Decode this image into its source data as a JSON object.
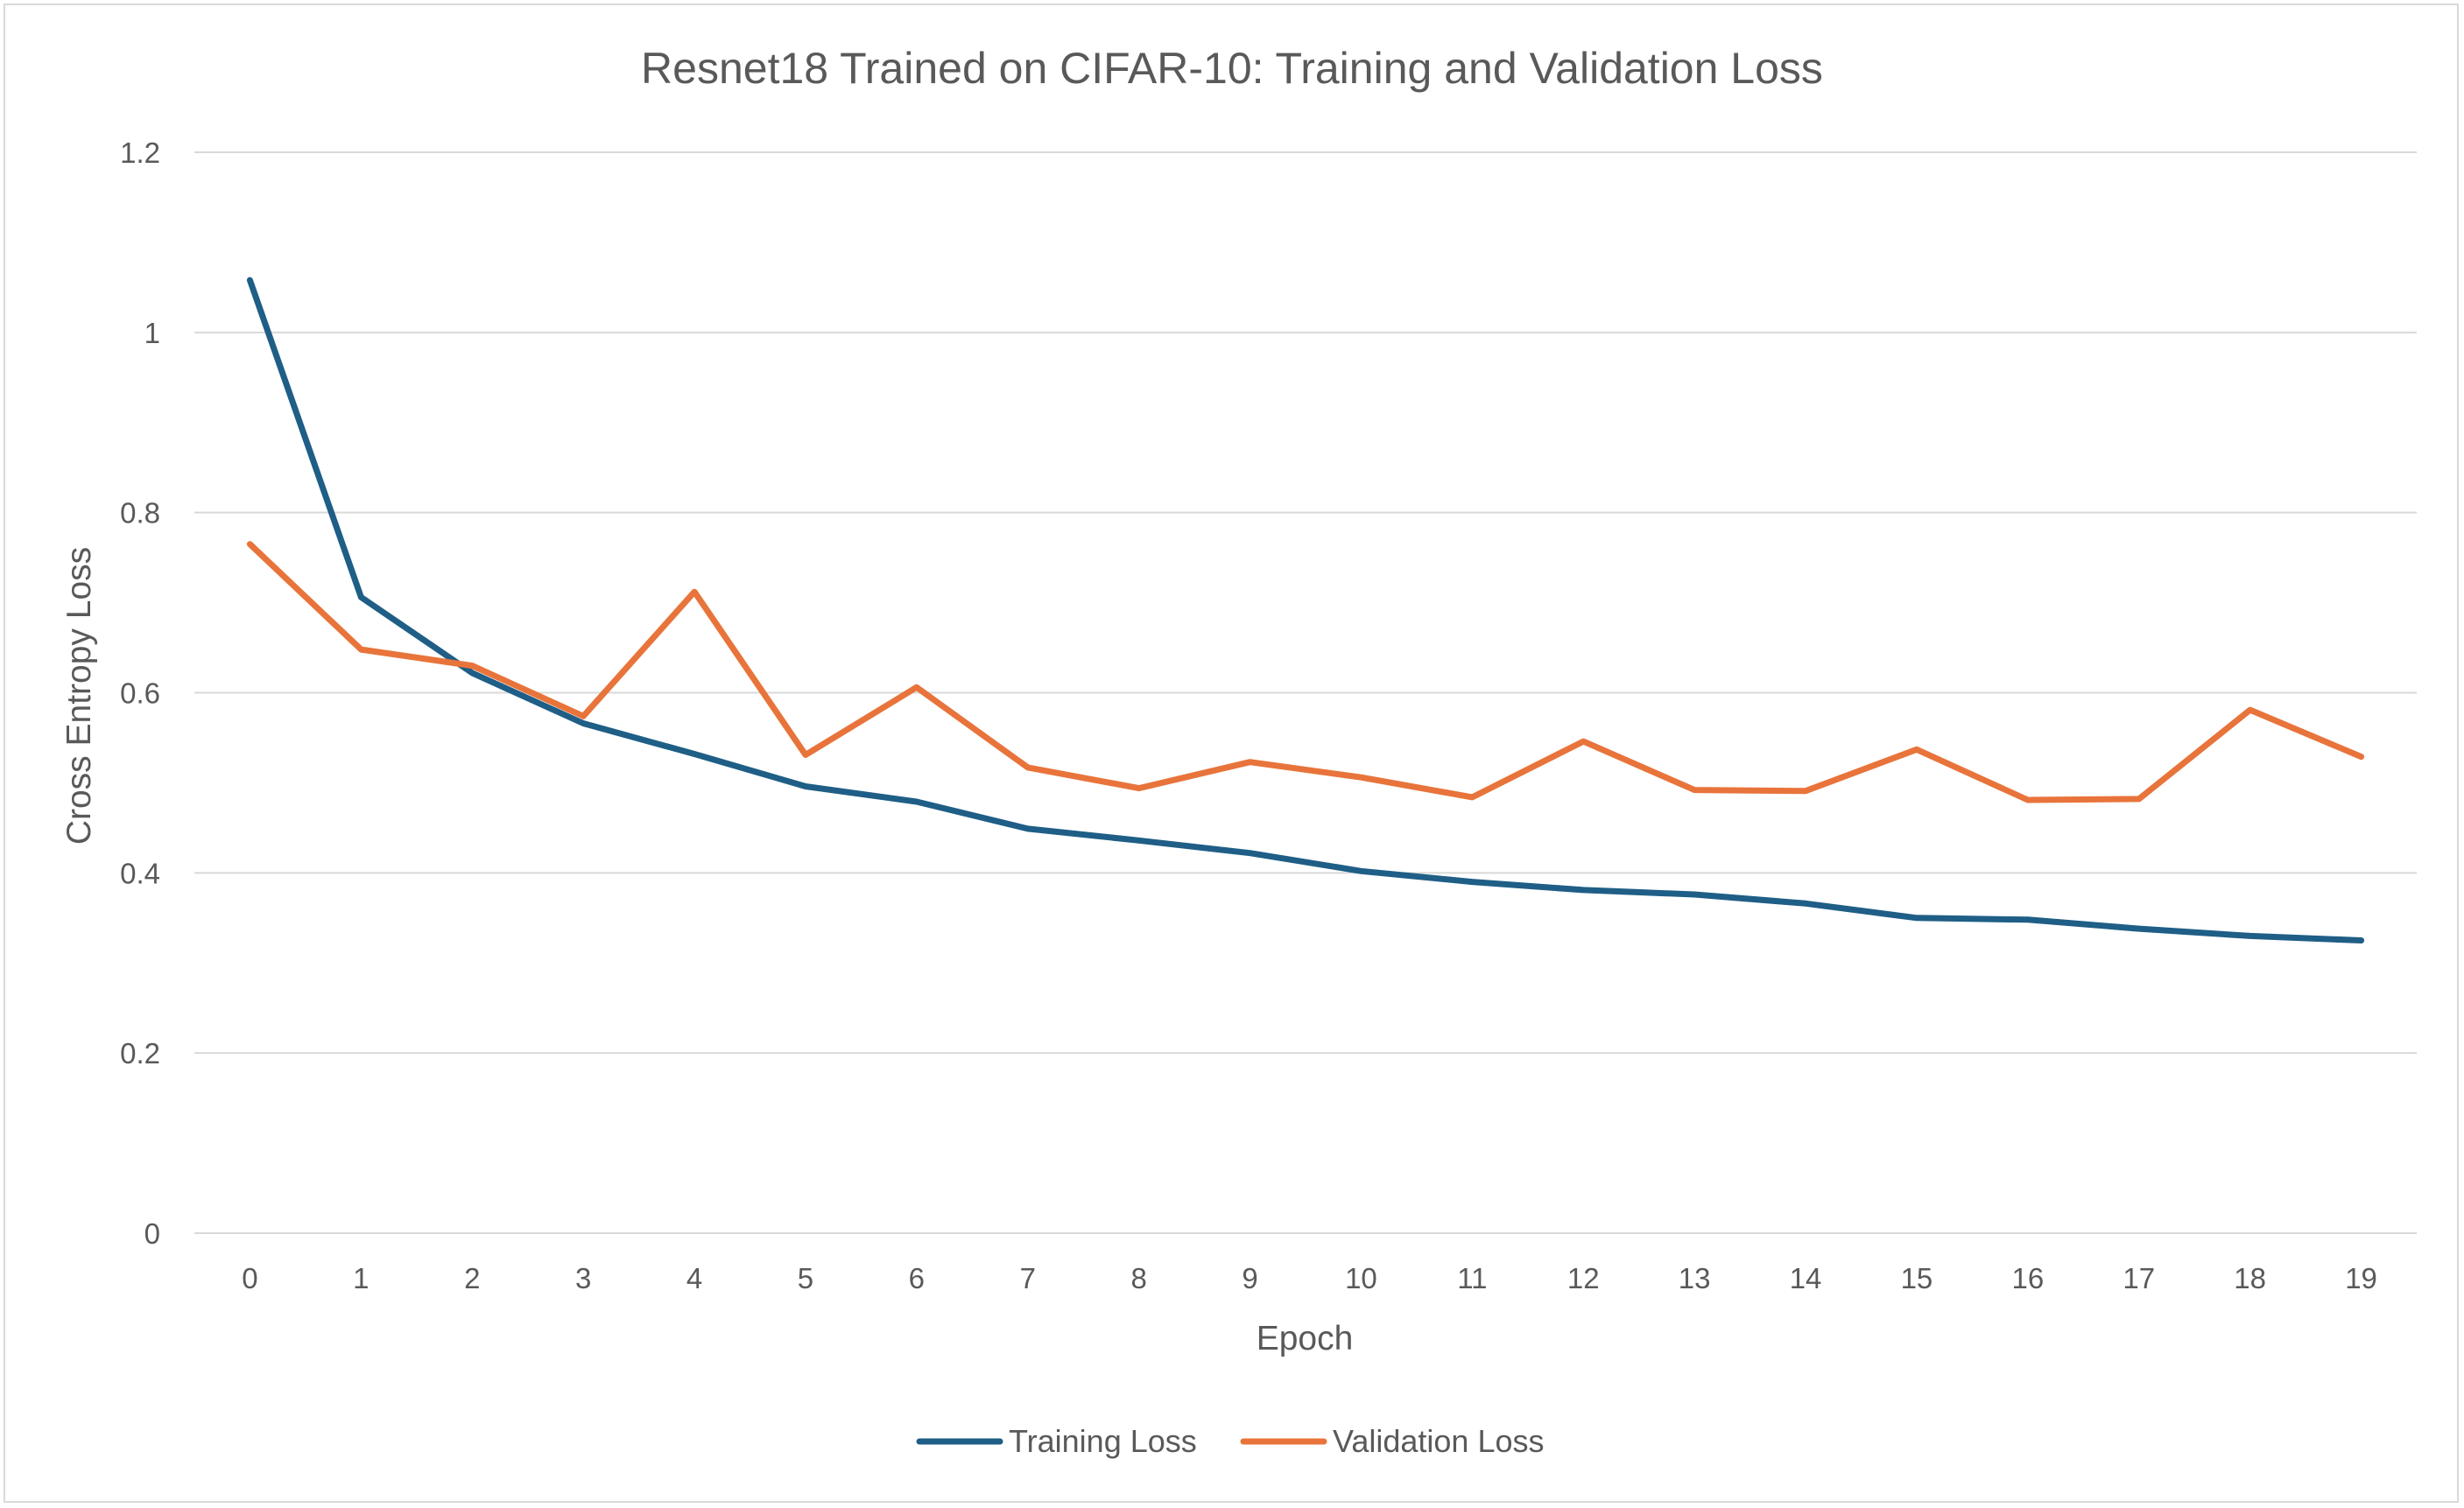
{
  "chart_data": {
    "type": "line",
    "title": "Resnet18 Trained on CIFAR-10: Training and Validation Loss",
    "xlabel": "Epoch",
    "ylabel": "Cross Entropy Loss",
    "x": [
      "0",
      "1",
      "2",
      "3",
      "4",
      "5",
      "6",
      "7",
      "8",
      "9",
      "10",
      "11",
      "12",
      "13",
      "14",
      "15",
      "16",
      "17",
      "18",
      "19"
    ],
    "ylim": [
      0,
      1.2
    ],
    "yticks": [
      "0",
      "0.2",
      "0.4",
      "0.6",
      "0.8",
      "1",
      "1.2"
    ],
    "grid": true,
    "legend_position": "bottom",
    "series": [
      {
        "name": "Training Loss",
        "color": "#1f5e86",
        "values": [
          1.058,
          0.706,
          0.622,
          0.566,
          0.532,
          0.496,
          0.479,
          0.449,
          0.436,
          0.422,
          0.402,
          0.39,
          0.381,
          0.376,
          0.366,
          0.35,
          0.348,
          0.338,
          0.33,
          0.325
        ]
      },
      {
        "name": "Validation Loss",
        "color": "#e8743b",
        "values": [
          0.765,
          0.648,
          0.63,
          0.574,
          0.712,
          0.531,
          0.606,
          0.517,
          0.494,
          0.523,
          0.506,
          0.484,
          0.546,
          0.492,
          0.491,
          0.537,
          0.481,
          0.482,
          0.581,
          0.529
        ]
      }
    ]
  }
}
